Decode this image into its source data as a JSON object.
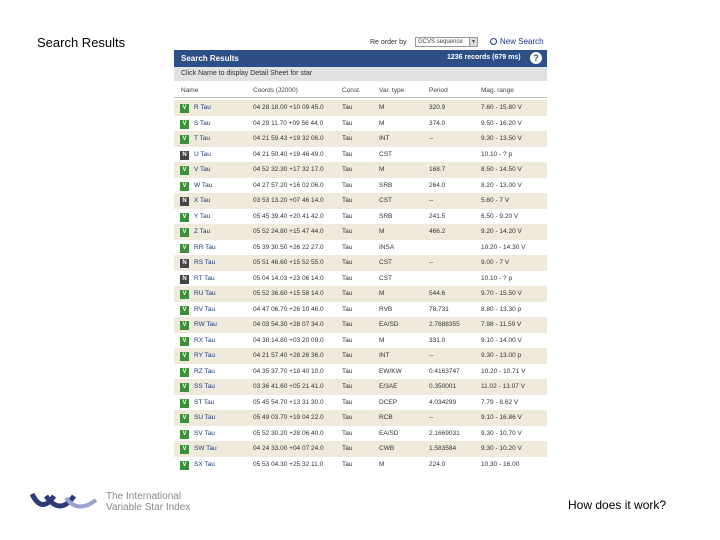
{
  "slide": {
    "title": "Search Results",
    "footer_question": "How does it work?"
  },
  "logo": {
    "line1": "The International",
    "line2": "Variable Star Index"
  },
  "toolbar": {
    "sort_label": "Re order by",
    "sort_value": "GCVS sequence",
    "new_search": "New Search"
  },
  "results": {
    "header_title": "Search Results",
    "record_count": "1236 records (679 ms)",
    "help": "?",
    "subheader": "Click Name to display Detail Sheet for star"
  },
  "columns": [
    "Name",
    "Coords (J2000)",
    "Const.",
    "Var. type",
    "Period",
    "Mag. range"
  ],
  "rows": [
    {
      "badge": "V",
      "name": "R Tau",
      "coords": "04 28 18.00 +10 09 45.0",
      "const": "Tau",
      "type": "M",
      "period": "320.9",
      "mag": "7.60 - 15.80 V"
    },
    {
      "badge": "V",
      "name": "S Tau",
      "coords": "04 29 11.70 +09 56 44.0",
      "const": "Tau",
      "type": "M",
      "period": "374.0",
      "mag": "9.50 - 16.20 V"
    },
    {
      "badge": "V",
      "name": "T Tau",
      "coords": "04 21 59.43 +19 32 06.0",
      "const": "Tau",
      "type": "INT",
      "period": "--",
      "mag": "9.30 - 13.50 V"
    },
    {
      "badge": "N",
      "name": "U Tau",
      "coords": "04 21 50.40 +19 46 49.0",
      "const": "Tau",
      "type": "CST",
      "period": "",
      "mag": "10.10 - ? p"
    },
    {
      "badge": "V",
      "name": "V Tau",
      "coords": "04 52 32.30 +17 32 17.0",
      "const": "Tau",
      "type": "M",
      "period": "168.7",
      "mag": "8.50 - 14.50 V"
    },
    {
      "badge": "V",
      "name": "W Tau",
      "coords": "04 27 57.20 +16 02 06.0",
      "const": "Tau",
      "type": "SRB",
      "period": "264.0",
      "mag": "8.20 - 13.00 V"
    },
    {
      "badge": "N",
      "name": "X Tau",
      "coords": "03 53 13.20 +07 46 14.0",
      "const": "Tau",
      "type": "CST",
      "period": "--",
      "mag": "5.60 - 7 V"
    },
    {
      "badge": "V",
      "name": "Y Tau",
      "coords": "05 45 39.40 +20 41 42.0",
      "const": "Tau",
      "type": "SRB",
      "period": "241.5",
      "mag": "6.50 - 9.20 V"
    },
    {
      "badge": "V",
      "name": "Z Tau",
      "coords": "05 52 24.80 +15 47 44.0",
      "const": "Tau",
      "type": "M",
      "period": "466.2",
      "mag": "9.20 - 14.20 V"
    },
    {
      "badge": "V",
      "name": "RR Tau",
      "coords": "05 39 30.50 +26 22 27.0",
      "const": "Tau",
      "type": "INSA",
      "period": "",
      "mag": "10.20 - 14.30 V"
    },
    {
      "badge": "N",
      "name": "RS Tau",
      "coords": "05 51 46.60 +15 52 55.0",
      "const": "Tau",
      "type": "CST",
      "period": "--",
      "mag": "9.00 - 7 V"
    },
    {
      "badge": "N",
      "name": "RT Tau",
      "coords": "05 04 14.03 +23 06 14.0",
      "const": "Tau",
      "type": "CST",
      "period": "",
      "mag": "10.10 - ? p"
    },
    {
      "badge": "V",
      "name": "RU Tau",
      "coords": "05 52 36.60 +15 58 14.0",
      "const": "Tau",
      "type": "M",
      "period": "544.6",
      "mag": "9.70 - 15.50 V"
    },
    {
      "badge": "V",
      "name": "RV Tau",
      "coords": "04 47 06.70 +26 10 46.0",
      "const": "Tau",
      "type": "RVB",
      "period": "78.731",
      "mag": "8.80 - 13.30 p"
    },
    {
      "badge": "V",
      "name": "RW Tau",
      "coords": "04 03 54.30 +28 07 34.0",
      "const": "Tau",
      "type": "EA/SD",
      "period": "2.7688355",
      "mag": "7.98 - 11.59 V"
    },
    {
      "badge": "V",
      "name": "RX Tau",
      "coords": "04 38 14.80 +03 20 09.0",
      "const": "Tau",
      "type": "M",
      "period": "331.0",
      "mag": "9.10 - 14.00 V"
    },
    {
      "badge": "V",
      "name": "RY Tau",
      "coords": "04 21 57.40 +28 26 36.0",
      "const": "Tau",
      "type": "INT",
      "period": "--",
      "mag": "9.30 - 13.00 p"
    },
    {
      "badge": "V",
      "name": "RZ Tau",
      "coords": "04 35 37.70 +18 40 10.0",
      "const": "Tau",
      "type": "EW/KW",
      "period": "0.4163747",
      "mag": "10.20 - 10.71 V"
    },
    {
      "badge": "V",
      "name": "SS Tau",
      "coords": "03 36 41.60 +05 21 41.0",
      "const": "Tau",
      "type": "E/3AE",
      "period": "0.350001",
      "mag": "11.02 - 13.07 V"
    },
    {
      "badge": "V",
      "name": "ST Tau",
      "coords": "05 45 54.70 +13 31 30.0",
      "const": "Tau",
      "type": "DCEP",
      "period": "4.034299",
      "mag": "7.79 - 8.62 V"
    },
    {
      "badge": "V",
      "name": "SU Tau",
      "coords": "05 49 03.70 +19 04 22.0",
      "const": "Tau",
      "type": "RCB",
      "period": "--",
      "mag": "9.10 - 16.86 V"
    },
    {
      "badge": "V",
      "name": "SV Tau",
      "coords": "05 52 30.20 +28 06 40.0",
      "const": "Tau",
      "type": "EA/SD",
      "period": "2.1669031",
      "mag": "9.30 - 10.70 V"
    },
    {
      "badge": "V",
      "name": "SW Tau",
      "coords": "04 24 33.00 +04 07 24.0",
      "const": "Tau",
      "type": "CWB",
      "period": "1.583584",
      "mag": "9.30 - 10.20 V"
    },
    {
      "badge": "V",
      "name": "SX Tau",
      "coords": "05 53 04.30 +25 32 11.0",
      "const": "Tau",
      "type": "M",
      "period": "224.0",
      "mag": "10.30 - 16.00"
    }
  ],
  "colors": {
    "header_bg": "#2e4f86",
    "row_tint": "#efeadc",
    "badge_variable": "#3e8e3a",
    "badge_nonvariable": "#444444",
    "logo_arc_dark": "#2e3a78",
    "logo_arc_light": "#9aa3cf"
  }
}
